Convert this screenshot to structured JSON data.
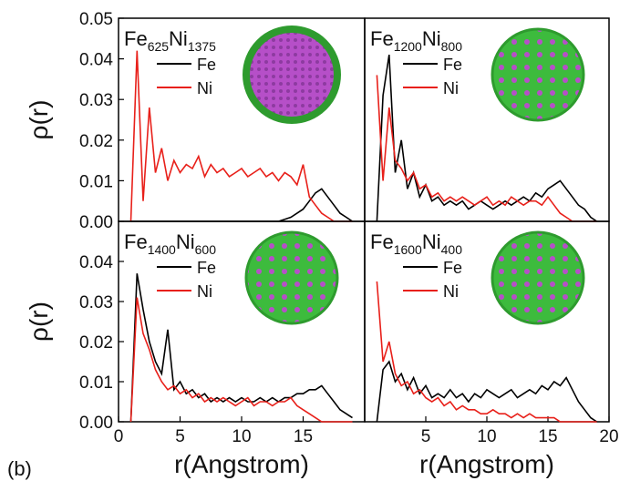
{
  "panel_label": "(b)",
  "chart_data": [
    {
      "type": "line",
      "label": [
        "Fe",
        "625",
        "Ni",
        "1375"
      ],
      "ylabel": "ρ(r)",
      "x": [
        1,
        1.5,
        2,
        2.5,
        3,
        3.5,
        4,
        4.5,
        5,
        5.5,
        6,
        6.5,
        7,
        7.5,
        8,
        8.5,
        9,
        9.5,
        10,
        10.5,
        11,
        11.5,
        12,
        12.5,
        13,
        13.5,
        14,
        14.5,
        15,
        15.5,
        16,
        16.5,
        17,
        17.5,
        18,
        18.5,
        19
      ],
      "series": [
        {
          "name": "Fe",
          "color": "#000000",
          "values": [
            0,
            0,
            0,
            0,
            0,
            0,
            0,
            0,
            0,
            0,
            0,
            0,
            0,
            0,
            0,
            0,
            0,
            0,
            0,
            0,
            0,
            0,
            0,
            0,
            0,
            0.0005,
            0.001,
            0.002,
            0.003,
            0.005,
            0.007,
            0.008,
            0.006,
            0.004,
            0.002,
            0.001,
            0
          ]
        },
        {
          "name": "Ni",
          "color": "#e8201a",
          "values": [
            0,
            0.042,
            0.005,
            0.028,
            0.012,
            0.018,
            0.01,
            0.015,
            0.012,
            0.014,
            0.013,
            0.016,
            0.011,
            0.014,
            0.012,
            0.013,
            0.011,
            0.012,
            0.013,
            0.011,
            0.012,
            0.013,
            0.011,
            0.012,
            0.01,
            0.012,
            0.011,
            0.009,
            0.014,
            0.006,
            0.004,
            0.002,
            0.001,
            0,
            0,
            0,
            0
          ]
        }
      ],
      "xlim": [
        0,
        20
      ],
      "ylim": [
        0,
        0.05
      ],
      "yticks": [
        {
          "value": 0,
          "label": "0.00"
        },
        {
          "value": 0.01,
          "label": "0.01"
        },
        {
          "value": 0.02,
          "label": "0.02"
        },
        {
          "value": 0.03,
          "label": "0.03"
        },
        {
          "value": 0.04,
          "label": "0.04"
        },
        {
          "value": 0.05,
          "label": "0.05"
        }
      ]
    },
    {
      "type": "line",
      "label": [
        "Fe",
        "1200",
        "Ni",
        "800"
      ],
      "x": [
        1,
        1.5,
        2,
        2.5,
        3,
        3.5,
        4,
        4.5,
        5,
        5.5,
        6,
        6.5,
        7,
        7.5,
        8,
        8.5,
        9,
        9.5,
        10,
        10.5,
        11,
        11.5,
        12,
        12.5,
        13,
        13.5,
        14,
        14.5,
        15,
        15.5,
        16,
        16.5,
        17,
        17.5,
        18,
        18.5,
        19
      ],
      "series": [
        {
          "name": "Fe",
          "color": "#000000",
          "values": [
            0,
            0.031,
            0.041,
            0.012,
            0.02,
            0.008,
            0.012,
            0.006,
            0.009,
            0.005,
            0.006,
            0.004,
            0.005,
            0.004,
            0.005,
            0.003,
            0.004,
            0.005,
            0.004,
            0.003,
            0.004,
            0.005,
            0.004,
            0.005,
            0.006,
            0.005,
            0.007,
            0.006,
            0.008,
            0.009,
            0.01,
            0.008,
            0.006,
            0.004,
            0.003,
            0.001,
            0
          ]
        },
        {
          "name": "Ni",
          "color": "#e8201a",
          "values": [
            0.036,
            0.01,
            0.028,
            0.015,
            0.013,
            0.01,
            0.012,
            0.008,
            0.009,
            0.006,
            0.007,
            0.005,
            0.006,
            0.005,
            0.006,
            0.005,
            0.004,
            0.005,
            0.006,
            0.004,
            0.005,
            0.004,
            0.006,
            0.005,
            0.004,
            0.005,
            0.005,
            0.004,
            0.006,
            0.004,
            0.002,
            0.001,
            0,
            0,
            0,
            0,
            0
          ]
        }
      ],
      "xlim": [
        0,
        20
      ],
      "ylim": [
        0,
        0.05
      ]
    },
    {
      "type": "line",
      "label": [
        "Fe",
        "1400",
        "Ni",
        "600"
      ],
      "ylabel": "ρ(r)",
      "xlabel": "r(Angstrom)",
      "x": [
        1,
        1.5,
        2,
        2.5,
        3,
        3.5,
        4,
        4.5,
        5,
        5.5,
        6,
        6.5,
        7,
        7.5,
        8,
        8.5,
        9,
        9.5,
        10,
        10.5,
        11,
        11.5,
        12,
        12.5,
        13,
        13.5,
        14,
        14.5,
        15,
        15.5,
        16,
        16.5,
        17,
        17.5,
        18,
        18.5,
        19
      ],
      "series": [
        {
          "name": "Fe",
          "color": "#000000",
          "values": [
            0,
            0.037,
            0.028,
            0.02,
            0.015,
            0.012,
            0.023,
            0.008,
            0.01,
            0.007,
            0.008,
            0.006,
            0.007,
            0.005,
            0.006,
            0.005,
            0.006,
            0.005,
            0.006,
            0.005,
            0.005,
            0.006,
            0.005,
            0.006,
            0.005,
            0.006,
            0.006,
            0.007,
            0.007,
            0.008,
            0.008,
            0.009,
            0.007,
            0.005,
            0.003,
            0.002,
            0.001
          ]
        },
        {
          "name": "Ni",
          "color": "#e8201a",
          "values": [
            0,
            0.031,
            0.022,
            0.018,
            0.013,
            0.01,
            0.008,
            0.009,
            0.007,
            0.008,
            0.006,
            0.007,
            0.005,
            0.006,
            0.005,
            0.006,
            0.005,
            0.004,
            0.005,
            0.006,
            0.004,
            0.005,
            0.005,
            0.004,
            0.005,
            0.005,
            0.006,
            0.004,
            0.003,
            0.002,
            0.001,
            0,
            0,
            0,
            0,
            0,
            0
          ]
        }
      ],
      "xlim": [
        0,
        20
      ],
      "ylim": [
        0,
        0.05
      ],
      "xticks": [
        0,
        5,
        10,
        15
      ],
      "yticks": [
        {
          "value": 0,
          "label": "0.00"
        },
        {
          "value": 0.01,
          "label": "0.01"
        },
        {
          "value": 0.02,
          "label": "0.02"
        },
        {
          "value": 0.03,
          "label": "0.03"
        },
        {
          "value": 0.04,
          "label": "0.04"
        }
      ]
    },
    {
      "type": "line",
      "label": [
        "Fe",
        "1600",
        "Ni",
        "400"
      ],
      "xlabel": "r(Angstrom)",
      "x": [
        1,
        1.5,
        2,
        2.5,
        3,
        3.5,
        4,
        4.5,
        5,
        5.5,
        6,
        6.5,
        7,
        7.5,
        8,
        8.5,
        9,
        9.5,
        10,
        10.5,
        11,
        11.5,
        12,
        12.5,
        13,
        13.5,
        14,
        14.5,
        15,
        15.5,
        16,
        16.5,
        17,
        17.5,
        18,
        18.5,
        19
      ],
      "series": [
        {
          "name": "Fe",
          "color": "#000000",
          "values": [
            0,
            0.013,
            0.015,
            0.01,
            0.012,
            0.008,
            0.011,
            0.007,
            0.009,
            0.006,
            0.007,
            0.006,
            0.008,
            0.006,
            0.007,
            0.005,
            0.007,
            0.006,
            0.008,
            0.007,
            0.006,
            0.007,
            0.008,
            0.006,
            0.007,
            0.008,
            0.007,
            0.009,
            0.008,
            0.01,
            0.009,
            0.011,
            0.008,
            0.005,
            0.003,
            0.001,
            0
          ]
        },
        {
          "name": "Ni",
          "color": "#e8201a",
          "values": [
            0.035,
            0.015,
            0.02,
            0.012,
            0.009,
            0.01,
            0.007,
            0.008,
            0.006,
            0.005,
            0.006,
            0.004,
            0.005,
            0.003,
            0.004,
            0.003,
            0.003,
            0.002,
            0.002,
            0.003,
            0.002,
            0.002,
            0.001,
            0.002,
            0.001,
            0.002,
            0.001,
            0.001,
            0.001,
            0.001,
            0,
            0,
            0,
            0,
            0,
            0,
            0
          ]
        }
      ],
      "xlim": [
        0,
        20
      ],
      "ylim": [
        0,
        0.05
      ],
      "xticks": [
        5,
        10,
        15,
        20
      ]
    }
  ]
}
